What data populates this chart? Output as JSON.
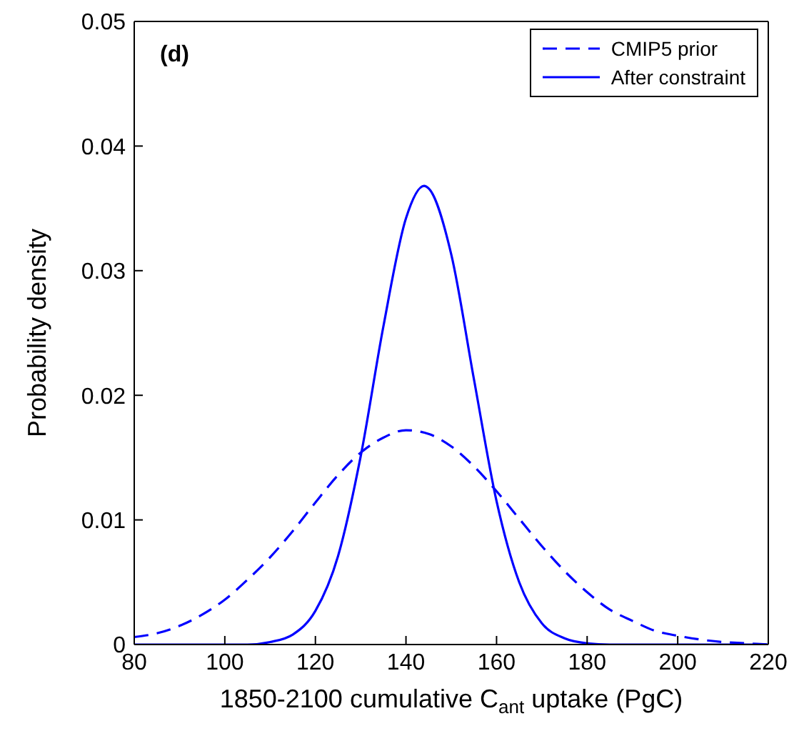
{
  "chart_data": {
    "type": "line",
    "xlabel": "1850-2100 cumulative C$_{ant}$ uptake (PgC)",
    "ylabel": "Probability density",
    "annotations": [
      "(d)"
    ],
    "xlim": [
      80,
      220
    ],
    "xticks": [
      80,
      100,
      120,
      140,
      160,
      180,
      200,
      220
    ],
    "ylim": [
      0,
      0.05
    ],
    "yticks": [
      0,
      0.01,
      0.02,
      0.03,
      0.04,
      0.05
    ],
    "grid": false,
    "legend": "top right",
    "marker": "none",
    "series": [
      {
        "name": "CMIP5 prior",
        "color": "#0000ff",
        "line_style": "dashed",
        "x": [
          80,
          85,
          90,
          95,
          100,
          105,
          110,
          115,
          120,
          125,
          130,
          135,
          140,
          145,
          150,
          155,
          160,
          165,
          170,
          175,
          180,
          185,
          190,
          195,
          200,
          205,
          210,
          215,
          220
        ],
        "values": [
          0.0006,
          0.0009,
          0.0015,
          0.0024,
          0.0036,
          0.0052,
          0.007,
          0.0091,
          0.0114,
          0.0136,
          0.0154,
          0.0166,
          0.0172,
          0.0169,
          0.0159,
          0.0143,
          0.0123,
          0.0101,
          0.0079,
          0.0059,
          0.0042,
          0.0028,
          0.0019,
          0.0011,
          0.0007,
          0.0004,
          0.0002,
          0.0001,
          0
        ]
      },
      {
        "name": "After constraint",
        "color": "#0000ff",
        "line_style": "solid",
        "x": [
          80,
          90,
          100,
          105,
          110,
          115,
          120,
          125,
          130,
          135,
          140,
          144,
          145,
          150,
          155,
          160,
          165,
          170,
          175,
          180,
          185,
          190,
          200,
          210,
          220
        ],
        "values": [
          0,
          0,
          0,
          0,
          0.0002,
          0.0008,
          0.0027,
          0.0071,
          0.0151,
          0.0255,
          0.0342,
          0.0368,
          0.0366,
          0.0313,
          0.0213,
          0.0115,
          0.005,
          0.0017,
          0.0005,
          0.0001,
          0,
          0,
          0,
          0,
          0
        ]
      }
    ]
  }
}
